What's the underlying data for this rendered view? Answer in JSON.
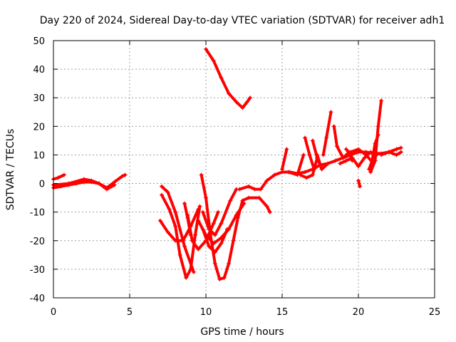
{
  "chart_data": {
    "type": "scatter",
    "title": "Day 220 of 2024, Sidereal Day-to-day VTEC variation (SDTVAR) for receiver adh1",
    "xlabel": "GPS time / hours",
    "ylabel": "SDTVAR / TECUs",
    "xlim": [
      0,
      25
    ],
    "ylim": [
      -40,
      50
    ],
    "xticks": [
      0,
      5,
      10,
      15,
      20,
      25
    ],
    "yticks": [
      -40,
      -30,
      -20,
      -10,
      0,
      10,
      20,
      30,
      40,
      50
    ],
    "grid": true,
    "marker": "+",
    "color": "#ff0000",
    "series": [
      {
        "name": "s1",
        "points": [
          [
            0.0,
            1.5
          ],
          [
            0.3,
            2.0
          ],
          [
            0.7,
            3.0
          ]
        ]
      },
      {
        "name": "s2",
        "points": [
          [
            0.0,
            -1.5
          ],
          [
            0.5,
            -1.0
          ],
          [
            1.0,
            -0.5
          ],
          [
            1.5,
            0.0
          ],
          [
            2.0,
            0.5
          ],
          [
            2.5,
            0.5
          ],
          [
            3.0,
            0.0
          ],
          [
            3.5,
            -1.5
          ],
          [
            4.0,
            0.5
          ],
          [
            4.5,
            2.5
          ],
          [
            4.7,
            3.0
          ]
        ]
      },
      {
        "name": "s3",
        "points": [
          [
            0.0,
            -0.5
          ],
          [
            1.0,
            0.0
          ],
          [
            2.0,
            1.5
          ],
          [
            2.5,
            1.0
          ],
          [
            3.0,
            0.0
          ],
          [
            3.5,
            -2.0
          ],
          [
            4.0,
            -0.5
          ]
        ]
      },
      {
        "name": "s4",
        "points": [
          [
            7.0,
            -13.0
          ],
          [
            7.5,
            -17.0
          ],
          [
            8.0,
            -20.0
          ],
          [
            8.5,
            -20.0
          ],
          [
            9.0,
            -15.0
          ],
          [
            9.5,
            -9.0
          ]
        ]
      },
      {
        "name": "s5",
        "points": [
          [
            7.1,
            -4.0
          ],
          [
            7.6,
            -9.0
          ],
          [
            8.0,
            -15.0
          ],
          [
            8.3,
            -25.0
          ],
          [
            8.7,
            -33.0
          ],
          [
            9.0,
            -30.0
          ],
          [
            9.3,
            -18.0
          ],
          [
            9.6,
            -8.0
          ]
        ]
      },
      {
        "name": "s6",
        "points": [
          [
            7.1,
            -1.0
          ],
          [
            7.5,
            -3.0
          ],
          [
            8.0,
            -10.0
          ],
          [
            8.6,
            -22.0
          ],
          [
            9.2,
            -31.0
          ]
        ]
      },
      {
        "name": "s7",
        "points": [
          [
            8.6,
            -7.0
          ],
          [
            8.8,
            -12.0
          ],
          [
            9.0,
            -18.0
          ]
        ]
      },
      {
        "name": "s8",
        "points": [
          [
            9.7,
            3.0
          ],
          [
            10.0,
            -5.0
          ],
          [
            10.3,
            -18.0
          ],
          [
            10.6,
            -28.0
          ],
          [
            10.9,
            -33.5
          ],
          [
            11.2,
            -33.0
          ],
          [
            11.5,
            -28.0
          ],
          [
            11.8,
            -20.0
          ],
          [
            12.1,
            -12.0
          ],
          [
            12.4,
            -6.0
          ],
          [
            12.8,
            -5.0
          ],
          [
            13.5,
            -5.0
          ],
          [
            14.0,
            -8.0
          ],
          [
            14.2,
            -10.0
          ]
        ]
      },
      {
        "name": "s9",
        "points": [
          [
            9.5,
            -13.0
          ],
          [
            10.0,
            -18.0
          ],
          [
            10.5,
            -21.0
          ],
          [
            11.0,
            -19.0
          ],
          [
            11.5,
            -16.0
          ],
          [
            12.0,
            -11.0
          ],
          [
            12.5,
            -7.0
          ]
        ]
      },
      {
        "name": "s10",
        "points": [
          [
            9.8,
            -10.0
          ],
          [
            10.2,
            -16.0
          ],
          [
            10.6,
            -18.0
          ],
          [
            11.0,
            -14.0
          ],
          [
            11.6,
            -6.0
          ],
          [
            12.0,
            -2.0
          ]
        ]
      },
      {
        "name": "s11",
        "points": [
          [
            8.8,
            -11.0
          ],
          [
            9.1,
            -20.0
          ],
          [
            9.5,
            -23.0
          ],
          [
            10.0,
            -20.0
          ],
          [
            10.5,
            -14.0
          ],
          [
            10.8,
            -10.0
          ]
        ]
      },
      {
        "name": "s12",
        "points": [
          [
            9.8,
            -16.0
          ],
          [
            10.2,
            -22.0
          ],
          [
            10.6,
            -24.0
          ],
          [
            11.0,
            -21.0
          ],
          [
            11.4,
            -16.0
          ]
        ]
      },
      {
        "name": "s13",
        "points": [
          [
            10.0,
            47.0
          ],
          [
            10.5,
            43.0
          ],
          [
            11.0,
            37.0
          ],
          [
            11.5,
            31.5
          ],
          [
            12.0,
            28.5
          ],
          [
            12.4,
            26.5
          ],
          [
            12.7,
            28.5
          ],
          [
            12.9,
            30.0
          ]
        ]
      },
      {
        "name": "s14",
        "points": [
          [
            12.2,
            -2.0
          ],
          [
            12.8,
            -1.0
          ],
          [
            13.2,
            -2.0
          ],
          [
            13.6,
            -2.0
          ],
          [
            14.0,
            1.0
          ],
          [
            14.5,
            3.0
          ],
          [
            15.0,
            4.0
          ],
          [
            15.5,
            4.0
          ],
          [
            16.0,
            3.5
          ],
          [
            16.5,
            4.0
          ],
          [
            17.0,
            5.0
          ],
          [
            17.5,
            6.5
          ],
          [
            18.0,
            7.0
          ],
          [
            18.5,
            8.0
          ],
          [
            19.0,
            9.0
          ],
          [
            19.5,
            10.0
          ],
          [
            20.0,
            11.0
          ],
          [
            20.5,
            11.0
          ],
          [
            21.0,
            10.5
          ],
          [
            21.5,
            10.5
          ],
          [
            22.0,
            11.0
          ],
          [
            22.5,
            12.0
          ],
          [
            22.8,
            12.5
          ]
        ]
      },
      {
        "name": "s15",
        "points": [
          [
            15.0,
            5.0
          ],
          [
            15.3,
            12.0
          ]
        ]
      },
      {
        "name": "s16",
        "points": [
          [
            15.4,
            4.0
          ],
          [
            16.0,
            3.0
          ],
          [
            16.4,
            10.0
          ]
        ]
      },
      {
        "name": "s17",
        "points": [
          [
            16.2,
            3.0
          ],
          [
            16.6,
            2.0
          ],
          [
            17.0,
            3.0
          ],
          [
            17.3,
            9.0
          ]
        ]
      },
      {
        "name": "s18",
        "points": [
          [
            16.5,
            16.0
          ],
          [
            16.8,
            10.0
          ],
          [
            17.1,
            5.0
          ]
        ]
      },
      {
        "name": "s19",
        "points": [
          [
            17.0,
            15.0
          ],
          [
            17.3,
            9.0
          ],
          [
            17.6,
            5.0
          ]
        ]
      },
      {
        "name": "s20",
        "points": [
          [
            17.3,
            10.0
          ],
          [
            17.6,
            5.0
          ],
          [
            18.0,
            7.0
          ]
        ]
      },
      {
        "name": "s21",
        "points": [
          [
            17.7,
            10.0
          ],
          [
            17.9,
            16.0
          ],
          [
            18.2,
            25.0
          ]
        ]
      },
      {
        "name": "s22",
        "points": [
          [
            18.4,
            20.0
          ],
          [
            18.6,
            13.0
          ],
          [
            19.0,
            9.0
          ],
          [
            19.4,
            11.0
          ],
          [
            19.6,
            8.0
          ]
        ]
      },
      {
        "name": "s23",
        "points": [
          [
            19.0,
            9.0
          ],
          [
            19.5,
            11.0
          ],
          [
            20.0,
            12.0
          ],
          [
            20.5,
            10.0
          ],
          [
            21.0,
            7.0
          ]
        ]
      },
      {
        "name": "s24",
        "points": [
          [
            19.2,
            12.0
          ],
          [
            19.6,
            9.0
          ],
          [
            20.0,
            6.0
          ],
          [
            20.4,
            9.0
          ],
          [
            20.8,
            11.0
          ],
          [
            21.2,
            10.0
          ]
        ]
      },
      {
        "name": "s25",
        "points": [
          [
            20.0,
            1.0
          ],
          [
            20.1,
            -1.0
          ]
        ]
      },
      {
        "name": "s26",
        "points": [
          [
            20.7,
            5.0
          ],
          [
            20.9,
            8.0
          ],
          [
            21.1,
            14.0
          ],
          [
            21.3,
            17.0
          ]
        ]
      },
      {
        "name": "s27",
        "points": [
          [
            20.8,
            4.0
          ],
          [
            21.1,
            8.0
          ],
          [
            21.3,
            20.0
          ],
          [
            21.5,
            29.0
          ]
        ]
      },
      {
        "name": "s28",
        "points": [
          [
            21.5,
            10.0
          ],
          [
            22.0,
            11.0
          ],
          [
            22.5,
            10.0
          ],
          [
            22.8,
            11.0
          ]
        ]
      },
      {
        "name": "s29",
        "points": [
          [
            18.8,
            7.0
          ],
          [
            19.2,
            8.0
          ],
          [
            19.6,
            9.0
          ]
        ]
      }
    ]
  }
}
